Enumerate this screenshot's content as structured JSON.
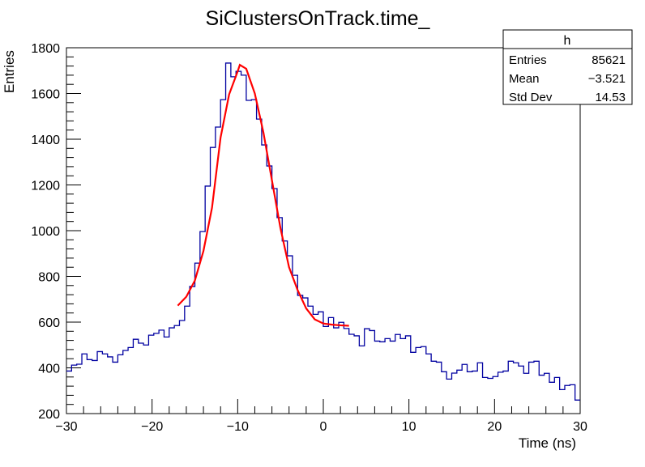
{
  "chart_data": {
    "type": "histogram",
    "title": "SiClustersOnTrack.time_",
    "xlabel": "Time (ns)",
    "ylabel": "Entries",
    "xlim": [
      -30,
      30
    ],
    "ylim": [
      200,
      1800
    ],
    "x_ticks": [
      "−30",
      "−20",
      "−10",
      "0",
      "10",
      "20",
      "30"
    ],
    "x_tick_values": [
      -30,
      -20,
      -10,
      0,
      10,
      20,
      30
    ],
    "y_ticks": [
      "200",
      "400",
      "600",
      "800",
      "1000",
      "1200",
      "1400",
      "1600",
      "1800"
    ],
    "y_tick_values": [
      200,
      400,
      600,
      800,
      1000,
      1200,
      1400,
      1600,
      1800
    ],
    "grid": false,
    "bin_low": -30,
    "bin_width": 0.6,
    "bin_values": [
      386,
      412,
      416,
      461,
      436,
      432,
      471,
      461,
      448,
      425,
      457,
      476,
      489,
      525,
      508,
      500,
      543,
      551,
      565,
      535,
      575,
      585,
      607,
      670,
      756,
      858,
      996,
      1195,
      1364,
      1453,
      1573,
      1733,
      1673,
      1697,
      1680,
      1570,
      1573,
      1488,
      1375,
      1283,
      1184,
      1057,
      955,
      890,
      805,
      717,
      706,
      670,
      634,
      645,
      581,
      620,
      575,
      599,
      572,
      547,
      540,
      496,
      571,
      563,
      517,
      514,
      528,
      517,
      546,
      528,
      540,
      468,
      489,
      493,
      461,
      429,
      425,
      383,
      351,
      377,
      390,
      415,
      383,
      386,
      422,
      358,
      354,
      362,
      381,
      386,
      429,
      422,
      408,
      376,
      425,
      429,
      368,
      376,
      337,
      358,
      305,
      323,
      326,
      259
    ],
    "fit": {
      "x": [
        -17,
        -16,
        -15,
        -14,
        -13,
        -12,
        -11,
        -10,
        -9.75,
        -9,
        -8,
        -7,
        -6,
        -5,
        -4,
        -3,
        -2,
        -1,
        0,
        1,
        2,
        3
      ],
      "y": [
        672,
        711,
        782,
        911,
        1100,
        1407,
        1596,
        1697,
        1725,
        1708,
        1600,
        1430,
        1220,
        1010,
        840,
        740,
        660,
        612,
        594,
        589,
        586,
        584
      ]
    },
    "colors": {
      "histogram": "#0000a0",
      "fit": "#ff0000",
      "axis": "#000000"
    },
    "stats_box": {
      "title": "h",
      "rows": [
        {
          "label": "Entries",
          "value": "85621"
        },
        {
          "label": "Mean",
          "value": "−3.521"
        },
        {
          "label": "Std Dev",
          "value": "14.53"
        }
      ]
    }
  }
}
